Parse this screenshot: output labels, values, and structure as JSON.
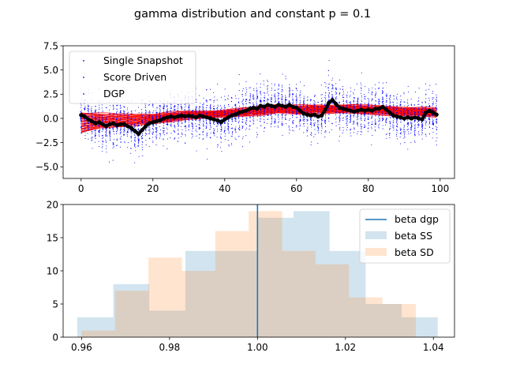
{
  "figure": {
    "title": "gamma distribution and constant p = 0.1"
  },
  "chart_data": [
    {
      "type": "scatter",
      "xlim": [
        -5,
        104
      ],
      "ylim": [
        -6.2,
        7.5
      ],
      "xticks": [
        0,
        20,
        40,
        60,
        80,
        100
      ],
      "yticks": [
        -5.0,
        -2.5,
        0.0,
        2.5,
        5.0,
        7.5
      ],
      "ytick_labels": [
        "−5.0",
        "−2.5",
        "0.0",
        "2.5",
        "5.0",
        "7.5"
      ],
      "legend": {
        "placement": "upper-left",
        "entries": [
          {
            "label": "Single Snapshot",
            "color": "#0000ff",
            "marker": "dot"
          },
          {
            "label": "Score Driven",
            "color": "#0000ff",
            "marker": "dot"
          },
          {
            "label": "DGP",
            "color": "#0000ff",
            "marker": "dot"
          }
        ]
      },
      "series": [
        {
          "name": "Single Snapshot",
          "role": "scatter",
          "color": "#0000ff",
          "points_per_x": 40
        },
        {
          "name": "Score Driven",
          "role": "filtered-paths-band",
          "color": "#ff0000",
          "x": [
            0,
            5,
            10,
            15,
            20,
            25,
            30,
            35,
            40,
            45,
            50,
            55,
            60,
            65,
            70,
            75,
            80,
            85,
            90,
            95,
            99
          ],
          "lower": [
            -1.5,
            -1.0,
            -0.8,
            -0.7,
            -0.5,
            -0.3,
            0.0,
            0.1,
            0.2,
            0.3,
            0.4,
            0.6,
            0.5,
            0.6,
            0.6,
            0.6,
            0.5,
            0.4,
            0.3,
            0.3,
            0.2
          ],
          "upper": [
            0.6,
            0.5,
            0.4,
            0.4,
            0.4,
            0.6,
            0.7,
            0.7,
            0.8,
            1.0,
            1.2,
            1.4,
            1.3,
            1.3,
            1.3,
            1.4,
            1.3,
            1.2,
            1.1,
            1.1,
            1.0
          ]
        },
        {
          "name": "DGP",
          "role": "true-path",
          "color": "#000000",
          "x": [
            0,
            1,
            2,
            3,
            4,
            5,
            6,
            7,
            8,
            9,
            10,
            11,
            12,
            13,
            14,
            15,
            16,
            17,
            18,
            19,
            20,
            21,
            22,
            23,
            24,
            25,
            26,
            27,
            28,
            29,
            30,
            31,
            32,
            33,
            34,
            35,
            36,
            37,
            38,
            39,
            40,
            41,
            42,
            43,
            44,
            45,
            46,
            47,
            48,
            49,
            50,
            51,
            52,
            53,
            54,
            55,
            56,
            57,
            58,
            59,
            60,
            61,
            62,
            63,
            64,
            65,
            66,
            67,
            68,
            69,
            70,
            71,
            72,
            73,
            74,
            75,
            76,
            77,
            78,
            79,
            80,
            81,
            82,
            83,
            84,
            85,
            86,
            87,
            88,
            89,
            90,
            91,
            92,
            93,
            94,
            95,
            96,
            97,
            98,
            99
          ],
          "y": [
            0.35,
            0.2,
            -0.1,
            -0.3,
            -0.5,
            -0.4,
            -0.6,
            -0.8,
            -0.6,
            -0.5,
            -0.7,
            -0.6,
            -0.6,
            -0.8,
            -1.0,
            -1.3,
            -1.6,
            -1.2,
            -0.8,
            -0.5,
            -0.4,
            -0.3,
            -0.2,
            0.0,
            0.1,
            0.2,
            0.1,
            0.2,
            0.3,
            0.2,
            0.3,
            0.2,
            0.1,
            0.3,
            0.2,
            0.1,
            0.0,
            -0.1,
            -0.2,
            -0.4,
            -0.1,
            0.1,
            0.3,
            0.4,
            0.6,
            0.7,
            0.8,
            1.0,
            1.1,
            1.0,
            1.3,
            1.2,
            1.4,
            1.3,
            1.2,
            1.4,
            1.3,
            1.2,
            1.4,
            1.2,
            1.1,
            0.8,
            0.5,
            0.4,
            0.3,
            0.4,
            0.2,
            0.3,
            0.9,
            1.6,
            1.9,
            1.5,
            1.1,
            1.0,
            0.9,
            0.8,
            0.7,
            0.8,
            0.9,
            0.8,
            0.9,
            0.8,
            1.0,
            1.0,
            1.2,
            0.9,
            0.6,
            0.3,
            0.2,
            0.1,
            0.0,
            0.1,
            0.0,
            0.1,
            0.0,
            -0.1,
            0.6,
            0.8,
            0.6,
            0.4
          ]
        }
      ]
    },
    {
      "type": "histogram",
      "xlim": [
        0.9558,
        1.0448
      ],
      "ylim": [
        0,
        20
      ],
      "xticks": [
        0.96,
        0.98,
        1.0,
        1.02,
        1.04
      ],
      "xtick_labels": [
        "0.96",
        "0.98",
        "1.00",
        "1.02",
        "1.04"
      ],
      "yticks": [
        0,
        5,
        10,
        15,
        20
      ],
      "legend": {
        "placement": "upper-right",
        "entries": [
          {
            "label": "beta dgp",
            "color": "#1f77b4",
            "marker": "line"
          },
          {
            "label": "beta SS",
            "color": "#1f77b4",
            "marker": "patch"
          },
          {
            "label": "beta SD",
            "color": "#ff7f0e",
            "marker": "patch"
          }
        ]
      },
      "vline": {
        "name": "beta dgp",
        "x": 1.0,
        "color": "#1f77b4"
      },
      "series": [
        {
          "name": "beta SS",
          "color": "#1f77b4",
          "opacity": 0.2,
          "edges": [
            0.959,
            0.9672,
            0.9754,
            0.9836,
            0.9918,
            1.0,
            1.0082,
            1.0164,
            1.0246,
            1.0328,
            1.041
          ],
          "counts": [
            3,
            8,
            4,
            13,
            13,
            18,
            19,
            13,
            5,
            3
          ]
        },
        {
          "name": "beta SD",
          "color": "#ff7f0e",
          "opacity": 0.2,
          "edges": [
            0.96,
            0.9676,
            0.9752,
            0.9828,
            0.9904,
            0.998,
            1.0056,
            1.0132,
            1.0208,
            1.0284,
            1.036
          ],
          "counts": [
            1,
            7,
            12,
            10,
            16,
            19,
            13,
            11,
            6,
            5
          ]
        }
      ]
    }
  ]
}
